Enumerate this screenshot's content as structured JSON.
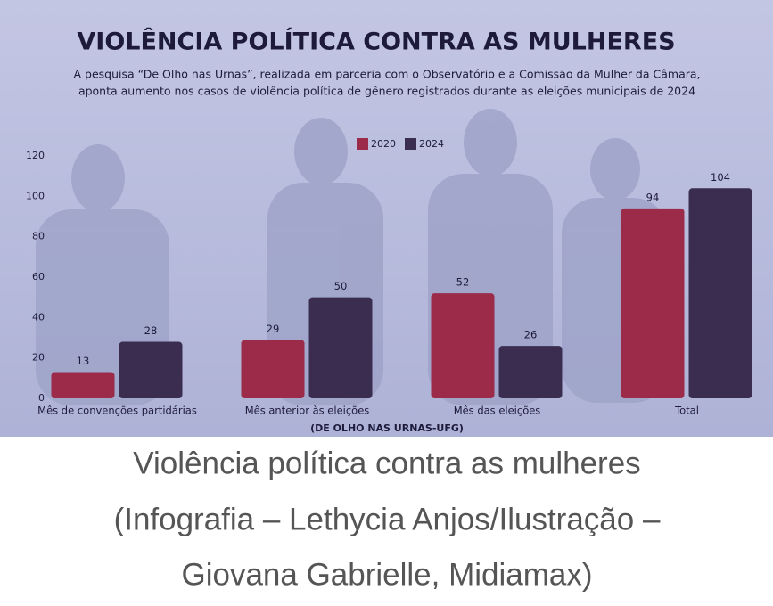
{
  "chart_data": {
    "type": "bar",
    "title": "VIOLÊNCIA POLÍTICA CONTRA AS MULHERES",
    "subtitle": [
      "A pesquisa “De Olho nas Urnas”, realizada em parceria com o Observatório e a Comissão da Mulher da Câmara,",
      "aponta aumento nos casos de violência política de gênero registrados durante as eleições municipais de 2024"
    ],
    "categories": [
      "Mês de convenções partidárias",
      "Mês anterior às eleições",
      "Mês das eleições",
      "Total"
    ],
    "series": [
      {
        "name": "2020",
        "color": "#9c2b49",
        "values": [
          13,
          29,
          52,
          94
        ]
      },
      {
        "name": "2024",
        "color": "#3a2d50",
        "values": [
          28,
          50,
          26,
          104
        ]
      }
    ],
    "ylim": [
      0,
      120
    ],
    "yticks": [
      0,
      20,
      40,
      60,
      80,
      100,
      120
    ],
    "grid": false,
    "source": "(DE OLHO NAS URNAS-UFG)"
  },
  "caption": [
    "Violência política contra as mulheres",
    "(Infografia – Lethycia Anjos/Ilustração –",
    "Giovana Gabrielle, Midiamax)"
  ]
}
